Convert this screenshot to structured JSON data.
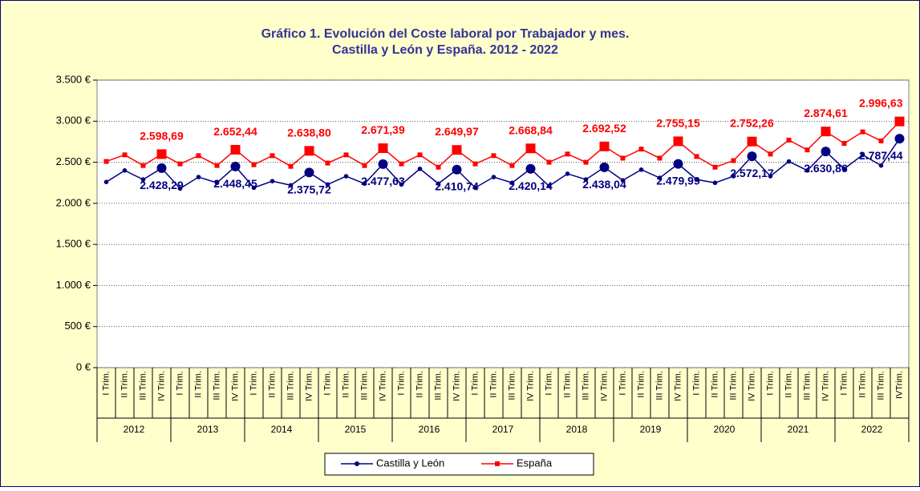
{
  "chart_data": {
    "type": "line",
    "title": [
      "Gráfico 1. Evolución del Coste laboral por Trabajador y mes.",
      "Castilla y León y España. 2012 - 2022"
    ],
    "categories": [
      "I Trim.",
      "II Trim.",
      "III Trim.",
      "IV Trim.",
      "I Trim.",
      "II Trim.",
      "III Trim.",
      "IV Trim.",
      "I Trim.",
      "II Trim.",
      "III Trim.",
      "IV Trim.",
      "I Trim.",
      "II Trim.",
      "III Trim.",
      "IV Trim.",
      "I Trim.",
      "II Trim.",
      "III Trim.",
      "IV Trim.",
      "I Trim.",
      "II Trim.",
      "III Trim.",
      "IV Trim.",
      "I Trim.",
      "II Trim.",
      "III Trim.",
      "IV Trim.",
      "I Trim.",
      "II Trim.",
      "III Trim.",
      "IV Trim.",
      "I Trim.",
      "II Trim.",
      "III Trim.",
      "IV Trim.",
      "I Trim.",
      "II Trim.",
      "III Trim.",
      "IV Trim.",
      "I Trim.",
      "II Trim.",
      "III Trim.",
      "IVTrim."
    ],
    "years": [
      "2012",
      "2013",
      "2014",
      "2015",
      "2016",
      "2017",
      "2018",
      "2019",
      "2020",
      "2021",
      "2022"
    ],
    "ylim": [
      0,
      3500
    ],
    "yticks": [
      {
        "value": 0,
        "label": "0 €"
      },
      {
        "value": 500,
        "label": "500 €"
      },
      {
        "value": 1000,
        "label": "1.000 €"
      },
      {
        "value": 1500,
        "label": "1.500 €"
      },
      {
        "value": 2000,
        "label": "2.000 €"
      },
      {
        "value": 2500,
        "label": "2.500 €"
      },
      {
        "value": 3000,
        "label": "3.000 €"
      },
      {
        "value": 3500,
        "label": "3.500 €"
      }
    ],
    "grid": true,
    "series": [
      {
        "name": "Castilla y León",
        "color": "#000080",
        "marker": "circle",
        "values": [
          2260,
          2400,
          2290,
          2428.29,
          2180,
          2320,
          2250,
          2448.45,
          2190,
          2270,
          2220,
          2375.72,
          2230,
          2330,
          2240,
          2477.63,
          2230,
          2420,
          2240,
          2410.74,
          2190,
          2320,
          2250,
          2420.14,
          2210,
          2360,
          2290,
          2438.04,
          2280,
          2410,
          2310,
          2479.99,
          2290,
          2250,
          2330,
          2572.17,
          2330,
          2510,
          2400,
          2630.86,
          2420,
          2590,
          2460,
          2787.44
        ],
        "value_labels": [
          null,
          null,
          null,
          "2.428,29",
          null,
          null,
          null,
          "2.448,45",
          null,
          null,
          null,
          "2.375,72",
          null,
          null,
          null,
          "2.477,63",
          null,
          null,
          null,
          "2.410,74",
          null,
          null,
          null,
          "2.420,14",
          null,
          null,
          null,
          "2.438,04",
          null,
          null,
          null,
          "2.479,99",
          null,
          null,
          null,
          "2.572,17",
          null,
          null,
          null,
          "2.630,86",
          null,
          null,
          null,
          "2.787,44"
        ]
      },
      {
        "name": "España",
        "color": "#ff0000",
        "marker": "square",
        "values": [
          2510,
          2590,
          2460,
          2598.69,
          2480,
          2580,
          2460,
          2652.44,
          2470,
          2580,
          2450,
          2638.8,
          2490,
          2590,
          2460,
          2671.39,
          2480,
          2590,
          2440,
          2649.97,
          2480,
          2580,
          2460,
          2668.84,
          2500,
          2600,
          2500,
          2692.52,
          2550,
          2660,
          2550,
          2755.15,
          2570,
          2440,
          2520,
          2752.26,
          2600,
          2770,
          2650,
          2874.61,
          2730,
          2870,
          2760,
          2996.63
        ],
        "value_labels": [
          null,
          null,
          null,
          "2.598,69",
          null,
          null,
          null,
          "2.652,44",
          null,
          null,
          null,
          "2.638,80",
          null,
          null,
          null,
          "2.671,39",
          null,
          null,
          null,
          "2.649,97",
          null,
          null,
          null,
          "2.668,84",
          null,
          null,
          null,
          "2.692,52",
          null,
          null,
          null,
          "2.755,15",
          null,
          null,
          null,
          "2.752,26",
          null,
          null,
          null,
          "2.874,61",
          null,
          null,
          null,
          "2.996,63"
        ]
      }
    ]
  }
}
